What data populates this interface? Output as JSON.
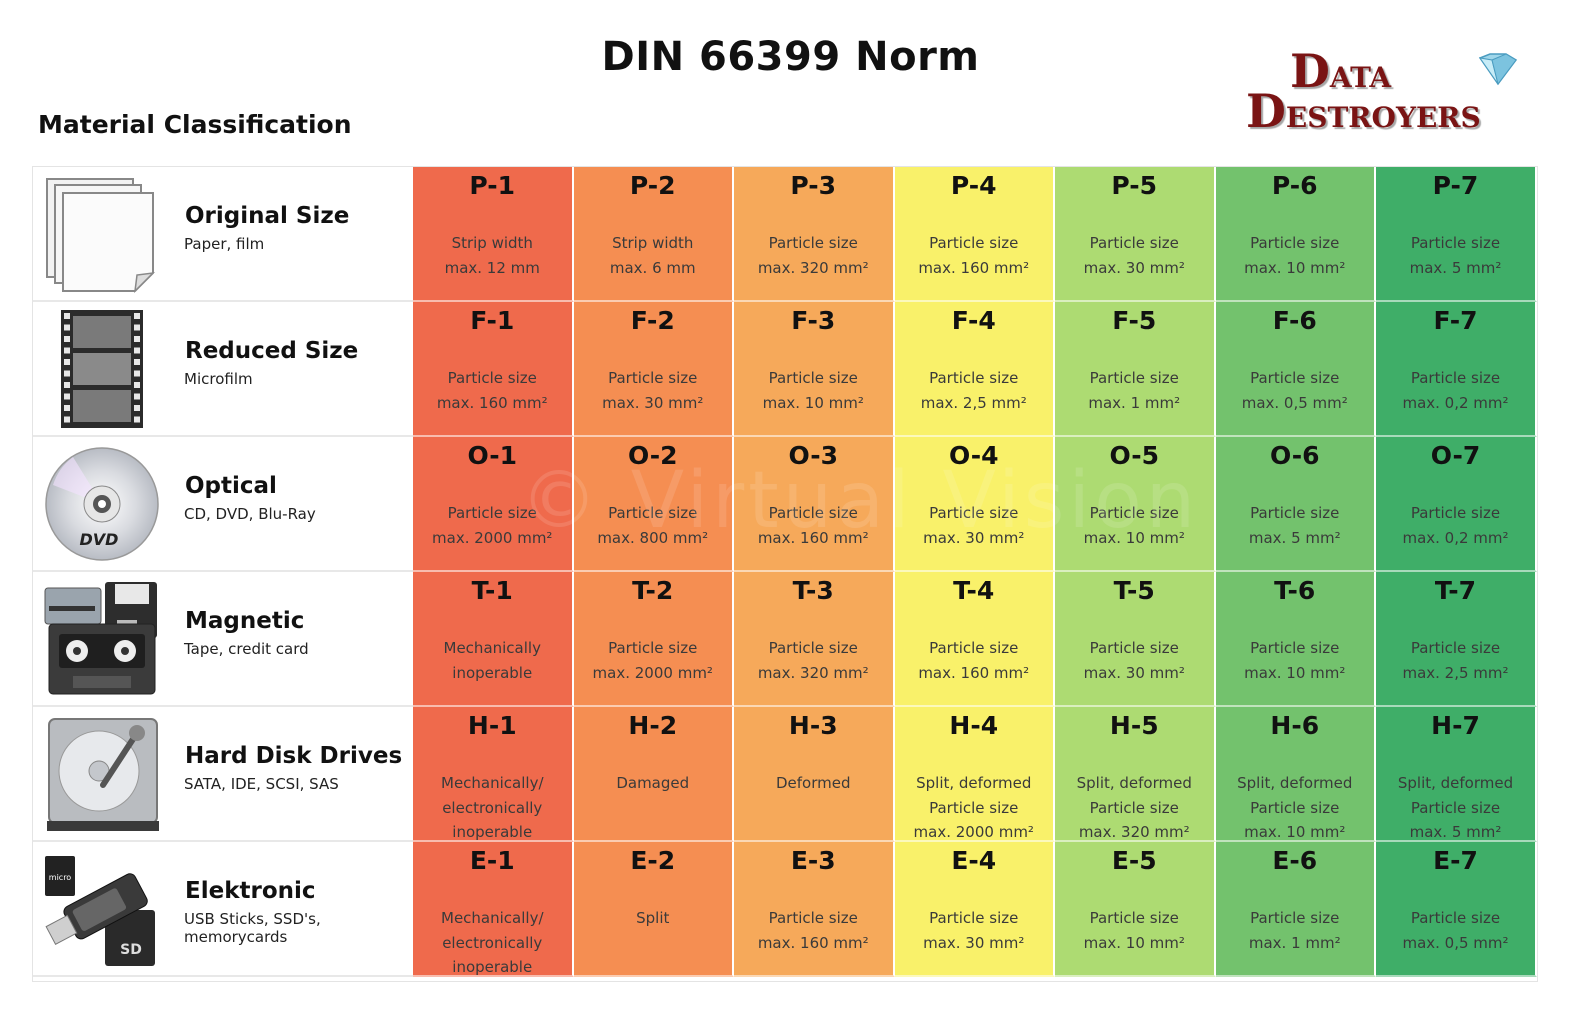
{
  "title": "DIN 66399 Norm",
  "subtitle": "Material Classification",
  "logo": {
    "line1_initial": "D",
    "line1_rest": "ATA",
    "line2_initial": "D",
    "line2_rest": "ESTROYERS"
  },
  "watermark": "© Virtual Vision",
  "colors": {
    "level1": "#ef6a4c",
    "level2": "#f58e52",
    "level3": "#f6a95a",
    "level4": "#f9f16a",
    "level5": "#addb72",
    "level6": "#73c26d",
    "level7": "#3fae68",
    "logo": "#7a1414"
  },
  "rows": [
    {
      "category": "Original Size",
      "desc": "Paper, film",
      "icon": "paper-stack-icon",
      "cells": [
        {
          "code": "P-1",
          "l1": "Strip width",
          "l2": "max. 12 mm",
          "l3": ""
        },
        {
          "code": "P-2",
          "l1": "Strip width",
          "l2": "max. 6 mm",
          "l3": ""
        },
        {
          "code": "P-3",
          "l1": "Particle size",
          "l2": "max. 320 mm²",
          "l3": ""
        },
        {
          "code": "P-4",
          "l1": "Particle size",
          "l2": "max. 160 mm²",
          "l3": ""
        },
        {
          "code": "P-5",
          "l1": "Particle size",
          "l2": "max. 30 mm²",
          "l3": ""
        },
        {
          "code": "P-6",
          "l1": "Particle size",
          "l2": "max. 10 mm²",
          "l3": ""
        },
        {
          "code": "P-7",
          "l1": "Particle size",
          "l2": "max. 5 mm²",
          "l3": ""
        }
      ]
    },
    {
      "category": "Reduced Size",
      "desc": "Microfilm",
      "icon": "film-strip-icon",
      "cells": [
        {
          "code": "F-1",
          "l1": "Particle size",
          "l2": "max. 160 mm²",
          "l3": ""
        },
        {
          "code": "F-2",
          "l1": "Particle size",
          "l2": "max. 30 mm²",
          "l3": ""
        },
        {
          "code": "F-3",
          "l1": "Particle size",
          "l2": "max. 10 mm²",
          "l3": ""
        },
        {
          "code": "F-4",
          "l1": "Particle size",
          "l2": "max. 2,5 mm²",
          "l3": ""
        },
        {
          "code": "F-5",
          "l1": "Particle size",
          "l2": "max. 1 mm²",
          "l3": ""
        },
        {
          "code": "F-6",
          "l1": "Particle size",
          "l2": "max. 0,5 mm²",
          "l3": ""
        },
        {
          "code": "F-7",
          "l1": "Particle size",
          "l2": "max. 0,2 mm²",
          "l3": ""
        }
      ]
    },
    {
      "category": "Optical",
      "desc": "CD, DVD, Blu-Ray",
      "icon": "dvd-disc-icon",
      "cells": [
        {
          "code": "O-1",
          "l1": "Particle size",
          "l2": "max. 2000 mm²",
          "l3": ""
        },
        {
          "code": "O-2",
          "l1": "Particle size",
          "l2": "max. 800 mm²",
          "l3": ""
        },
        {
          "code": "O-3",
          "l1": "Particle size",
          "l2": "max. 160 mm²",
          "l3": ""
        },
        {
          "code": "O-4",
          "l1": "Particle size",
          "l2": "max. 30 mm²",
          "l3": ""
        },
        {
          "code": "O-5",
          "l1": "Particle size",
          "l2": "max. 10 mm²",
          "l3": ""
        },
        {
          "code": "O-6",
          "l1": "Particle size",
          "l2": "max. 5 mm²",
          "l3": ""
        },
        {
          "code": "O-7",
          "l1": "Particle size",
          "l2": "max. 0,2 mm²",
          "l3": ""
        }
      ]
    },
    {
      "category": "Magnetic",
      "desc": "Tape, credit card",
      "icon": "magnetic-media-icon",
      "cells": [
        {
          "code": "T-1",
          "l1": "Mechanically",
          "l2": "inoperable",
          "l3": ""
        },
        {
          "code": "T-2",
          "l1": "Particle size",
          "l2": "max. 2000 mm²",
          "l3": ""
        },
        {
          "code": "T-3",
          "l1": "Particle size",
          "l2": "max. 320 mm²",
          "l3": ""
        },
        {
          "code": "T-4",
          "l1": "Particle size",
          "l2": "max. 160 mm²",
          "l3": ""
        },
        {
          "code": "T-5",
          "l1": "Particle size",
          "l2": "max. 30 mm²",
          "l3": ""
        },
        {
          "code": "T-6",
          "l1": "Particle size",
          "l2": "max. 10 mm²",
          "l3": ""
        },
        {
          "code": "T-7",
          "l1": "Particle size",
          "l2": "max. 2,5 mm²",
          "l3": ""
        }
      ]
    },
    {
      "category": "Hard Disk Drives",
      "desc": "SATA, IDE, SCSI, SAS",
      "icon": "hard-disk-icon",
      "cells": [
        {
          "code": "H-1",
          "l1": "Mechanically/",
          "l2": "electronically",
          "l3": "inoperable"
        },
        {
          "code": "H-2",
          "l1": "Damaged",
          "l2": "",
          "l3": ""
        },
        {
          "code": "H-3",
          "l1": "Deformed",
          "l2": "",
          "l3": ""
        },
        {
          "code": "H-4",
          "l1": "Split, deformed",
          "l2": "Particle size",
          "l3": "max. 2000 mm²"
        },
        {
          "code": "H-5",
          "l1": "Split, deformed",
          "l2": "Particle size",
          "l3": "max. 320 mm²"
        },
        {
          "code": "H-6",
          "l1": "Split, deformed",
          "l2": "Particle size",
          "l3": "max. 10 mm²"
        },
        {
          "code": "H-7",
          "l1": "Split, deformed",
          "l2": "Particle size",
          "l3": "max. 5 mm²"
        }
      ]
    },
    {
      "category": "Elektronic",
      "desc": "USB Sticks, SSD's, memorycards",
      "icon": "usb-stick-icon",
      "cells": [
        {
          "code": "E-1",
          "l1": "Mechanically/",
          "l2": "electronically",
          "l3": "inoperable"
        },
        {
          "code": "E-2",
          "l1": "Split",
          "l2": "",
          "l3": ""
        },
        {
          "code": "E-3",
          "l1": "Particle size",
          "l2": "max. 160 mm²",
          "l3": ""
        },
        {
          "code": "E-4",
          "l1": "Particle size",
          "l2": "max. 30 mm²",
          "l3": ""
        },
        {
          "code": "E-5",
          "l1": "Particle size",
          "l2": "max. 10 mm²",
          "l3": ""
        },
        {
          "code": "E-6",
          "l1": "Particle size",
          "l2": "max. 1 mm²",
          "l3": ""
        },
        {
          "code": "E-7",
          "l1": "Particle size",
          "l2": "max. 0,5 mm²",
          "l3": ""
        }
      ]
    }
  ]
}
